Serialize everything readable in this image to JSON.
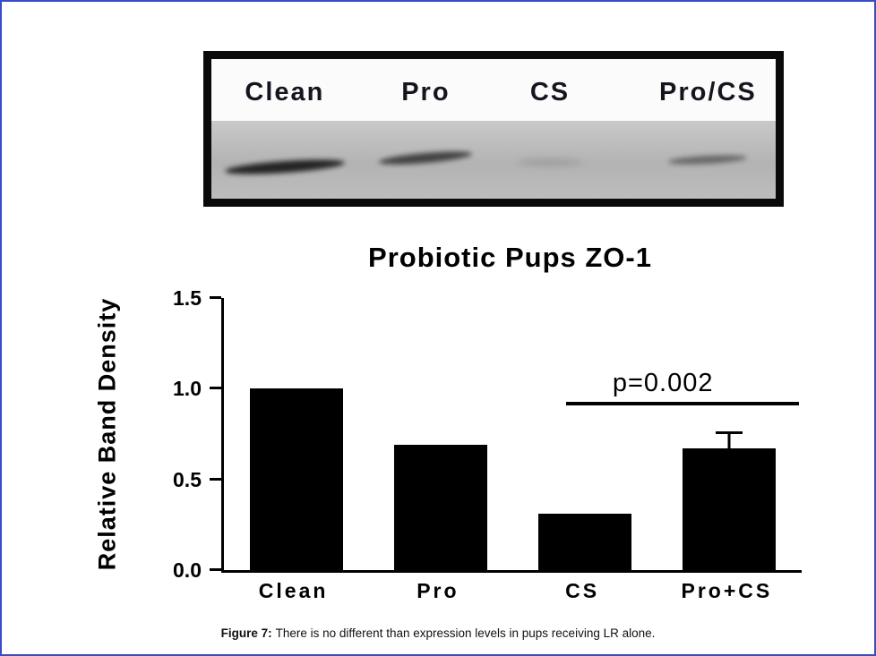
{
  "page": {
    "border_color": "#3b4dc1",
    "background": "#ffffff"
  },
  "blot": {
    "labels": [
      "Clean",
      "Pro",
      "CS",
      "Pro/CS"
    ],
    "bands": [
      {
        "lane": "Clean",
        "intensity": "strong"
      },
      {
        "lane": "Pro",
        "intensity": "medium"
      },
      {
        "lane": "CS",
        "intensity": "very-faint"
      },
      {
        "lane": "Pro/CS",
        "intensity": "faint"
      }
    ]
  },
  "chart_data": {
    "type": "bar",
    "title": "Probiotic Pups ZO-1",
    "ylabel": "Relative Band Density",
    "xlabel": "",
    "categories": [
      "Clean",
      "Pro",
      "CS",
      "Pro+CS"
    ],
    "values": [
      1.0,
      0.69,
      0.31,
      0.67
    ],
    "error_bars": [
      null,
      null,
      null,
      0.08
    ],
    "ylim": [
      0,
      1.5
    ],
    "yticks": [
      0,
      0.5,
      1,
      1.5
    ],
    "bar_color": "#000000",
    "grid": false,
    "legend": false,
    "annotation": {
      "text": "p=0.002",
      "between": [
        "CS",
        "Pro+CS"
      ]
    }
  },
  "caption": {
    "label": "Figure 7:",
    "text": "There is no different than expression levels in pups receiving LR alone."
  }
}
